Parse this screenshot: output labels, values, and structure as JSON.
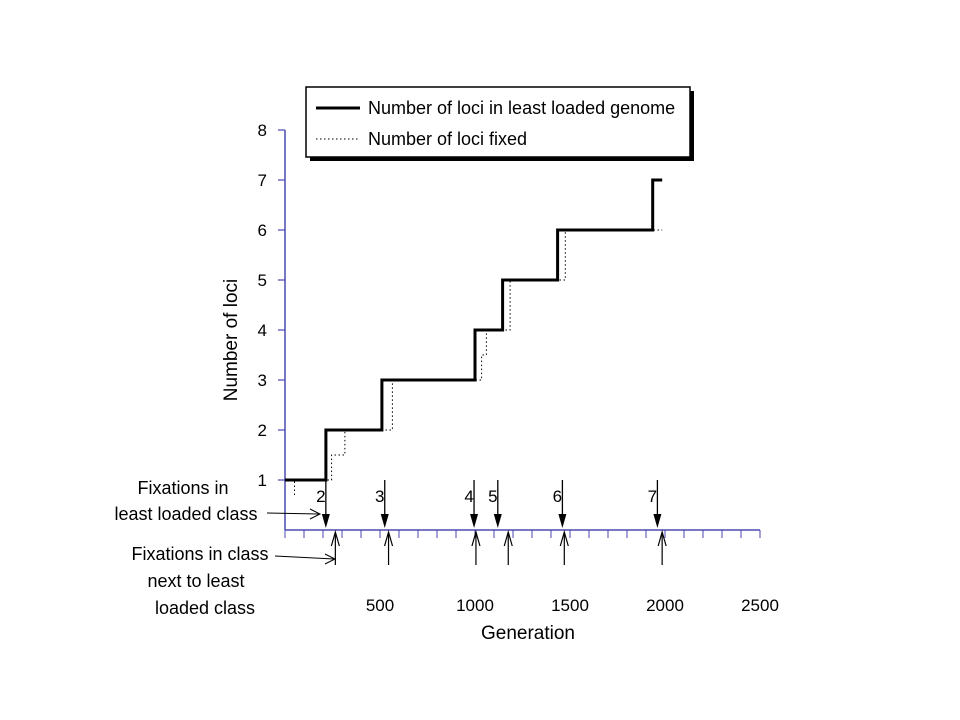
{
  "chart_data": {
    "type": "line",
    "title": "",
    "xlabel": "Generation",
    "ylabel": "Number of loci",
    "xlim": [
      0,
      2500
    ],
    "ylim": [
      0,
      8
    ],
    "x_ticks": [
      500,
      1000,
      1500,
      2000,
      2500
    ],
    "y_ticks": [
      1,
      2,
      3,
      4,
      5,
      6,
      7,
      8
    ],
    "grid": false,
    "legend_placement": "top-right",
    "series": [
      {
        "name": "Number of loci in least loaded genome",
        "style": "solid",
        "points": [
          [
            0,
            1
          ],
          [
            215,
            1
          ],
          [
            215,
            2
          ],
          [
            510,
            2
          ],
          [
            510,
            3
          ],
          [
            1000,
            3
          ],
          [
            1000,
            4
          ],
          [
            1145,
            4
          ],
          [
            1145,
            5
          ],
          [
            1435,
            5
          ],
          [
            1435,
            6
          ],
          [
            1935,
            6
          ],
          [
            1935,
            7
          ],
          [
            1985,
            7
          ]
        ]
      },
      {
        "name": "Number of loci fixed",
        "style": "dotted",
        "points": [
          [
            50,
            0.7
          ],
          [
            50,
            1
          ],
          [
            245,
            1
          ],
          [
            245,
            1.5
          ],
          [
            315,
            1.5
          ],
          [
            315,
            2
          ],
          [
            565,
            2
          ],
          [
            565,
            3
          ],
          [
            1035,
            3
          ],
          [
            1035,
            3.5
          ],
          [
            1060,
            3.5
          ],
          [
            1060,
            4
          ],
          [
            1185,
            4
          ],
          [
            1185,
            5
          ],
          [
            1475,
            5
          ],
          [
            1475,
            6
          ],
          [
            1985,
            6
          ]
        ]
      }
    ],
    "annotations": {
      "least_loaded_label_line1": "Fixations in",
      "least_loaded_label_line2": "least loaded class",
      "next_class_label_line1": "Fixations in class",
      "next_class_label_line2": "next to least",
      "next_class_label_line3": "loaded class",
      "least_loaded_fixations": [
        {
          "label": "2",
          "x": 215
        },
        {
          "label": "3",
          "x": 525
        },
        {
          "label": "4",
          "x": 995
        },
        {
          "label": "5",
          "x": 1120
        },
        {
          "label": "6",
          "x": 1460
        },
        {
          "label": "7",
          "x": 1960
        }
      ],
      "next_class_fixations": [
        265,
        545,
        1005,
        1175,
        1470,
        1985
      ]
    }
  }
}
